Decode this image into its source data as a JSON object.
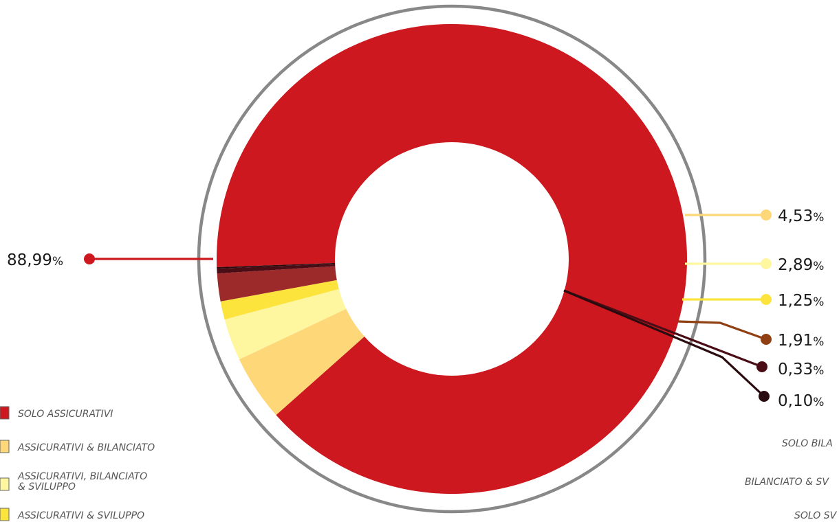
{
  "chart_data": {
    "type": "pie",
    "variant": "donut",
    "categories": [
      "SOLO ASSICURATIVI",
      "ASSICURATIVI & BILANCIATO",
      "ASSICURATIVI, BILANCIATO & SVILUPPO",
      "ASSICURATIVI & SVILUPPO",
      "SOLO BILANCIATO",
      "BILANCIATO & SVILUPPO",
      "SOLO SVILUPPO"
    ],
    "values": [
      88.99,
      4.53,
      2.89,
      1.25,
      1.91,
      0.33,
      0.1
    ],
    "value_labels": [
      "88,99",
      "4,53",
      "2,89",
      "1,25",
      "1,91",
      "0,33",
      "0,10"
    ],
    "unit": "%",
    "colors": [
      "#cc181e",
      "#fed878",
      "#fff6a0",
      "#fde43d",
      "#9c2a2a",
      "#4a0d16",
      "#2a0c10"
    ],
    "marker_colors": [
      "#cc181e",
      "#fed878",
      "#fff6a0",
      "#fde43d",
      "#8f3f12",
      "#4a0d16",
      "#2a0c10"
    ],
    "legend_visible": [
      "SOLO ASSICURATIVI",
      "ASSICURATIVI & BILANCIATO",
      "ASSICURATIVI, BILANCIATO\n& SVILUPPO",
      "ASSICURATIVI & SVILUPPO"
    ],
    "legend_right_visible": [
      "SOLO BILA",
      "BILANCIATO & SV",
      "SOLO SV"
    ]
  }
}
